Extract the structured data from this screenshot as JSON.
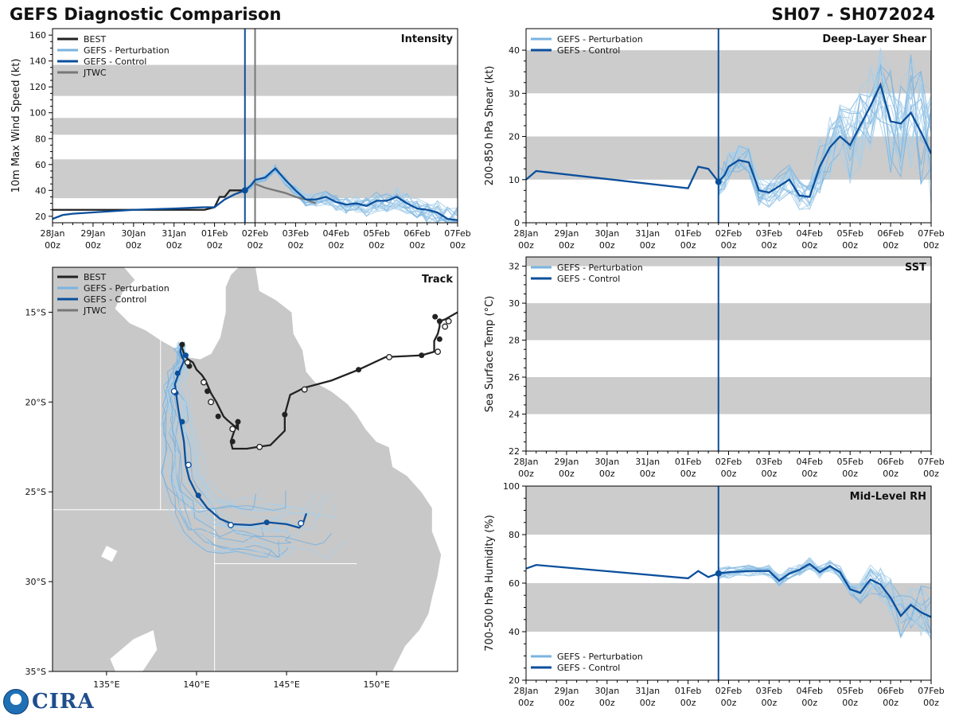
{
  "header": {
    "title": "GEFS Diagnostic Comparison",
    "storm_id": "SH07 - SH072024"
  },
  "logo": {
    "text": "CIRA"
  },
  "colors": {
    "best": "#222222",
    "pert": "#7ab3df",
    "pert_light": "#a9cfea",
    "control": "#0b4f9c",
    "jtwc": "#777777",
    "band": "#cccccc",
    "land": "#c8c8c8",
    "ocean": "#ffffff"
  },
  "time_axis": {
    "labels": [
      "28Jan\n00z",
      "29Jan\n00z",
      "30Jan\n00z",
      "31Jan\n00z",
      "01Feb\n00z",
      "02Feb\n00z",
      "03Feb\n00z",
      "04Feb\n00z",
      "05Feb\n00z",
      "06Feb\n00z",
      "07Feb\n00z"
    ],
    "xlim": [
      0,
      10
    ],
    "init_time": 4.75,
    "jtwc_time": 5.0
  },
  "chart_data": [
    {
      "id": "intensity",
      "type": "line",
      "title": "Intensity",
      "ylabel": "10m Max Wind Speed (kt)",
      "ylim": [
        15,
        165
      ],
      "yticks": [
        20,
        40,
        60,
        80,
        100,
        120,
        140,
        160
      ],
      "bands": [
        [
          34,
          64
        ],
        [
          83,
          96
        ],
        [
          113,
          137
        ]
      ],
      "legend": [
        "BEST",
        "GEFS - Perturbation",
        "GEFS - Control",
        "JTWC"
      ],
      "series": [
        {
          "name": "BEST",
          "x": [
            0,
            3.75,
            4.0,
            4.125,
            4.25,
            4.375,
            4.5,
            4.625,
            4.75
          ],
          "values": [
            25,
            25,
            27,
            35,
            35,
            40,
            40,
            40,
            40
          ]
        },
        {
          "name": "JTWC",
          "x": [
            5.0,
            5.25,
            5.5,
            5.75,
            6.0,
            6.25,
            6.5
          ],
          "values": [
            45,
            42,
            40,
            38,
            35,
            33,
            30
          ]
        },
        {
          "name": "GEFS - Control",
          "x": [
            0,
            0.25,
            0.5,
            1.0,
            2.0,
            3.0,
            3.75,
            4.0,
            4.25,
            4.5,
            4.75,
            4.9,
            5.0,
            5.25,
            5.5,
            5.75,
            6.0,
            6.25,
            6.5,
            6.75,
            7.0,
            7.25,
            7.5,
            7.75,
            8.0,
            8.25,
            8.5,
            8.75,
            9.0,
            9.25,
            9.5,
            9.75,
            10.0
          ],
          "values": [
            18,
            21,
            22,
            23,
            25,
            26,
            27,
            27,
            33,
            37,
            40,
            44,
            48,
            50,
            57,
            48,
            40,
            33,
            33,
            35,
            31,
            29,
            30,
            28,
            32,
            32,
            35,
            30,
            26,
            25,
            23,
            18,
            17
          ]
        }
      ]
    },
    {
      "id": "shear",
      "type": "line",
      "title": "Deep-Layer Shear",
      "ylabel": "200-850 hPa Shear (kt)",
      "ylim": [
        0,
        45
      ],
      "yticks": [
        0,
        10,
        20,
        30,
        40
      ],
      "bands": [
        [
          10,
          20
        ],
        [
          30,
          40
        ]
      ],
      "legend": [
        "GEFS - Perturbation",
        "GEFS - Control"
      ],
      "series": [
        {
          "name": "GEFS - Control",
          "x": [
            0,
            0.25,
            4.0,
            4.25,
            4.5,
            4.75,
            4.9,
            5.0,
            5.25,
            5.5,
            5.75,
            6.0,
            6.25,
            6.5,
            6.75,
            7.0,
            7.25,
            7.5,
            7.75,
            8.0,
            8.25,
            8.5,
            8.75,
            9.0,
            9.25,
            9.5,
            9.75,
            10.0
          ],
          "values": [
            10,
            12,
            8,
            13,
            12.5,
            9.5,
            11,
            13,
            14.5,
            14,
            7.5,
            7,
            8.5,
            10,
            6.3,
            6,
            13,
            17.5,
            20,
            18,
            22.5,
            27,
            32,
            23.5,
            23,
            25.5,
            21,
            16
          ]
        }
      ]
    },
    {
      "id": "sst",
      "type": "line",
      "title": "SST",
      "ylabel": "Sea Surface Temp (°C)",
      "ylim": [
        22,
        32.5
      ],
      "yticks": [
        22,
        24,
        26,
        28,
        30,
        32
      ],
      "bands": [
        [
          24,
          26
        ],
        [
          28,
          30
        ],
        [
          32,
          34
        ]
      ],
      "legend": [
        "GEFS - Perturbation",
        "GEFS - Control"
      ],
      "series": []
    },
    {
      "id": "rh",
      "type": "line",
      "title": "Mid-Level RH",
      "ylabel": "700-500 hPa Humidity (%)",
      "ylim": [
        20,
        100
      ],
      "yticks": [
        20,
        40,
        60,
        80,
        100
      ],
      "bands": [
        [
          40,
          60
        ],
        [
          80,
          100
        ]
      ],
      "legend": [
        "GEFS - Perturbation",
        "GEFS - Control"
      ],
      "series": [
        {
          "name": "GEFS - Control",
          "x": [
            0,
            0.25,
            4.0,
            4.25,
            4.5,
            4.75,
            5.0,
            5.5,
            6.0,
            6.25,
            6.5,
            6.75,
            7.0,
            7.25,
            7.5,
            7.75,
            8.0,
            8.25,
            8.5,
            8.75,
            9.0,
            9.25,
            9.5,
            9.75,
            10.0
          ],
          "values": [
            66,
            67.5,
            62,
            65,
            62.5,
            64,
            64.5,
            65,
            65,
            61,
            64,
            65.5,
            68,
            64.5,
            67,
            64.5,
            57.5,
            56,
            61.5,
            59.5,
            54,
            46.5,
            51,
            48,
            46
          ]
        }
      ]
    },
    {
      "id": "track",
      "type": "scatter",
      "title": "Track",
      "xlim": [
        132,
        154.5
      ],
      "ylim": [
        -35,
        -12.5
      ],
      "xticks": [
        135,
        140,
        145,
        150
      ],
      "xtick_labels": [
        "135°E",
        "140°E",
        "145°E",
        "150°E"
      ],
      "yticks": [
        -15,
        -20,
        -25,
        -30,
        -35
      ],
      "ytick_labels": [
        "15°S",
        "20°S",
        "25°S",
        "30°S",
        "35°S"
      ],
      "legend": [
        "BEST",
        "GEFS - Perturbation",
        "GEFS - Control",
        "JTWC"
      ],
      "series": [
        {
          "name": "BEST",
          "lon": [
            154.5,
            153.8,
            153.5,
            153.5,
            153.4,
            153.2,
            153.2,
            152.5,
            151.5,
            150.5,
            149.0,
            147.5,
            146.0,
            145.2,
            144.9,
            144.9,
            144.1,
            143.4,
            142.8,
            142.0,
            141.9,
            142.1,
            142.3,
            142.3,
            141.7,
            141.5,
            141.1,
            140.8,
            140.5,
            140.3,
            140.0,
            139.8,
            139.5,
            139.3,
            139.2,
            139.15
          ],
          "lat": [
            -15.0,
            -15.4,
            -15.5,
            -15.8,
            -16.2,
            -16.6,
            -17.2,
            -17.4,
            -17.45,
            -17.5,
            -18.2,
            -18.8,
            -19.2,
            -19.6,
            -20.7,
            -21.6,
            -22.4,
            -22.5,
            -22.6,
            -22.6,
            -22.2,
            -21.6,
            -21.1,
            -21.5,
            -21.0,
            -20.8,
            -20.0,
            -19.5,
            -18.8,
            -18.5,
            -18.2,
            -17.8,
            -17.6,
            -17.3,
            -17.0,
            -16.8
          ]
        },
        {
          "name": "JTWC",
          "lon": [
            139.15,
            139.1,
            139.2
          ],
          "lat": [
            -16.8,
            -17.2,
            -17.6
          ]
        },
        {
          "name": "GEFS - Control",
          "lon": [
            139.15,
            139.1,
            139.3,
            139.05,
            138.8,
            138.9,
            139.0,
            139.1,
            139.3,
            139.4,
            139.6,
            140.0,
            140.6,
            141.3,
            142.0,
            143.0,
            144.0,
            145.0,
            145.7,
            145.9,
            146.1
          ],
          "lat": [
            -16.8,
            -17.2,
            -17.7,
            -18.3,
            -19.0,
            -19.8,
            -20.5,
            -21.1,
            -22.2,
            -23.5,
            -24.3,
            -25.1,
            -25.9,
            -26.5,
            -26.8,
            -26.85,
            -26.7,
            -26.8,
            -27.0,
            -26.8,
            -26.2
          ]
        }
      ],
      "best_dots": {
        "filled": [
          [
            153.5,
            -15.5
          ],
          [
            153.25,
            -15.25
          ],
          [
            153.5,
            -16.5
          ],
          [
            152.5,
            -17.4
          ],
          [
            149.0,
            -18.2
          ],
          [
            144.9,
            -20.7
          ],
          [
            142.3,
            -21.1
          ],
          [
            142.0,
            -22.2
          ],
          [
            141.2,
            -20.8
          ],
          [
            140.6,
            -19.4
          ],
          [
            139.6,
            -18.0
          ],
          [
            139.2,
            -16.8
          ]
        ],
        "hollow": [
          [
            154.0,
            -15.5
          ],
          [
            153.8,
            -15.8
          ],
          [
            153.4,
            -17.2
          ],
          [
            150.7,
            -17.5
          ],
          [
            146.0,
            -19.3
          ],
          [
            143.5,
            -22.5
          ],
          [
            142.0,
            -21.5
          ],
          [
            140.8,
            -20.0
          ],
          [
            140.4,
            -18.9
          ],
          [
            139.5,
            -17.8
          ]
        ]
      },
      "control_dots": {
        "filled": [
          [
            138.95,
            -18.4
          ],
          [
            138.85,
            -19.5
          ],
          [
            139.2,
            -21.1
          ],
          [
            140.1,
            -25.2
          ],
          [
            143.9,
            -26.7
          ],
          [
            139.4,
            -17.4
          ]
        ],
        "hollow": [
          [
            138.75,
            -19.4
          ],
          [
            139.55,
            -23.5
          ],
          [
            141.9,
            -26.85
          ],
          [
            145.8,
            -26.75
          ]
        ]
      }
    }
  ]
}
